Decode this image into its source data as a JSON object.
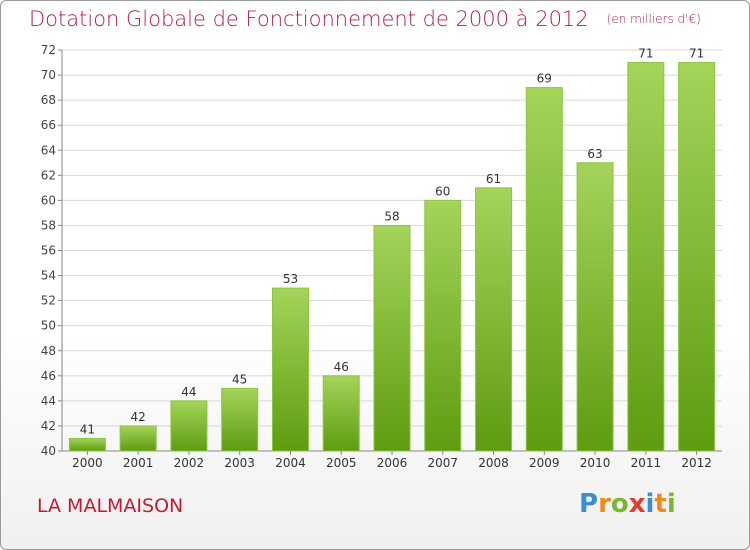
{
  "title": "Dotation Globale de Fonctionnement de 2000 à 2012",
  "unit_note": "(en milliers d'€)",
  "place_name": "LA MALMAISON",
  "logo": {
    "text": "Proxiti",
    "letters": [
      {
        "ch": "P",
        "color": "#3a8fd1"
      },
      {
        "ch": "r",
        "color": "#f08a1c"
      },
      {
        "ch": "o",
        "color": "#7ab833"
      },
      {
        "ch": "x",
        "color": "#e23a2e"
      },
      {
        "ch": "i",
        "color": "#3a8fd1"
      },
      {
        "ch": "t",
        "color": "#f08a1c"
      },
      {
        "ch": "i",
        "color": "#7ab833"
      }
    ]
  },
  "colors": {
    "bar_top": "#a4d45a",
    "bar_bottom": "#5e9c10",
    "bar_edge": "#8cc63f",
    "grid": "#d8d8d8",
    "title": "#b2204a",
    "place": "#c21c35"
  },
  "chart_data": {
    "type": "bar",
    "categories": [
      "2000",
      "2001",
      "2002",
      "2003",
      "2004",
      "2005",
      "2006",
      "2007",
      "2008",
      "2009",
      "2010",
      "2011",
      "2012"
    ],
    "values": [
      41,
      42,
      44,
      45,
      53,
      46,
      58,
      60,
      61,
      69,
      63,
      71,
      71
    ],
    "data_labels": [
      "41",
      "42",
      "44",
      "45",
      "53",
      "46",
      "58",
      "60",
      "61",
      "69",
      "63",
      "71",
      "71"
    ],
    "ylim": [
      40,
      72
    ],
    "y_ticks": [
      40,
      42,
      44,
      46,
      48,
      50,
      52,
      54,
      56,
      58,
      60,
      62,
      64,
      66,
      68,
      70,
      72
    ],
    "grid": true,
    "legend": "none"
  }
}
